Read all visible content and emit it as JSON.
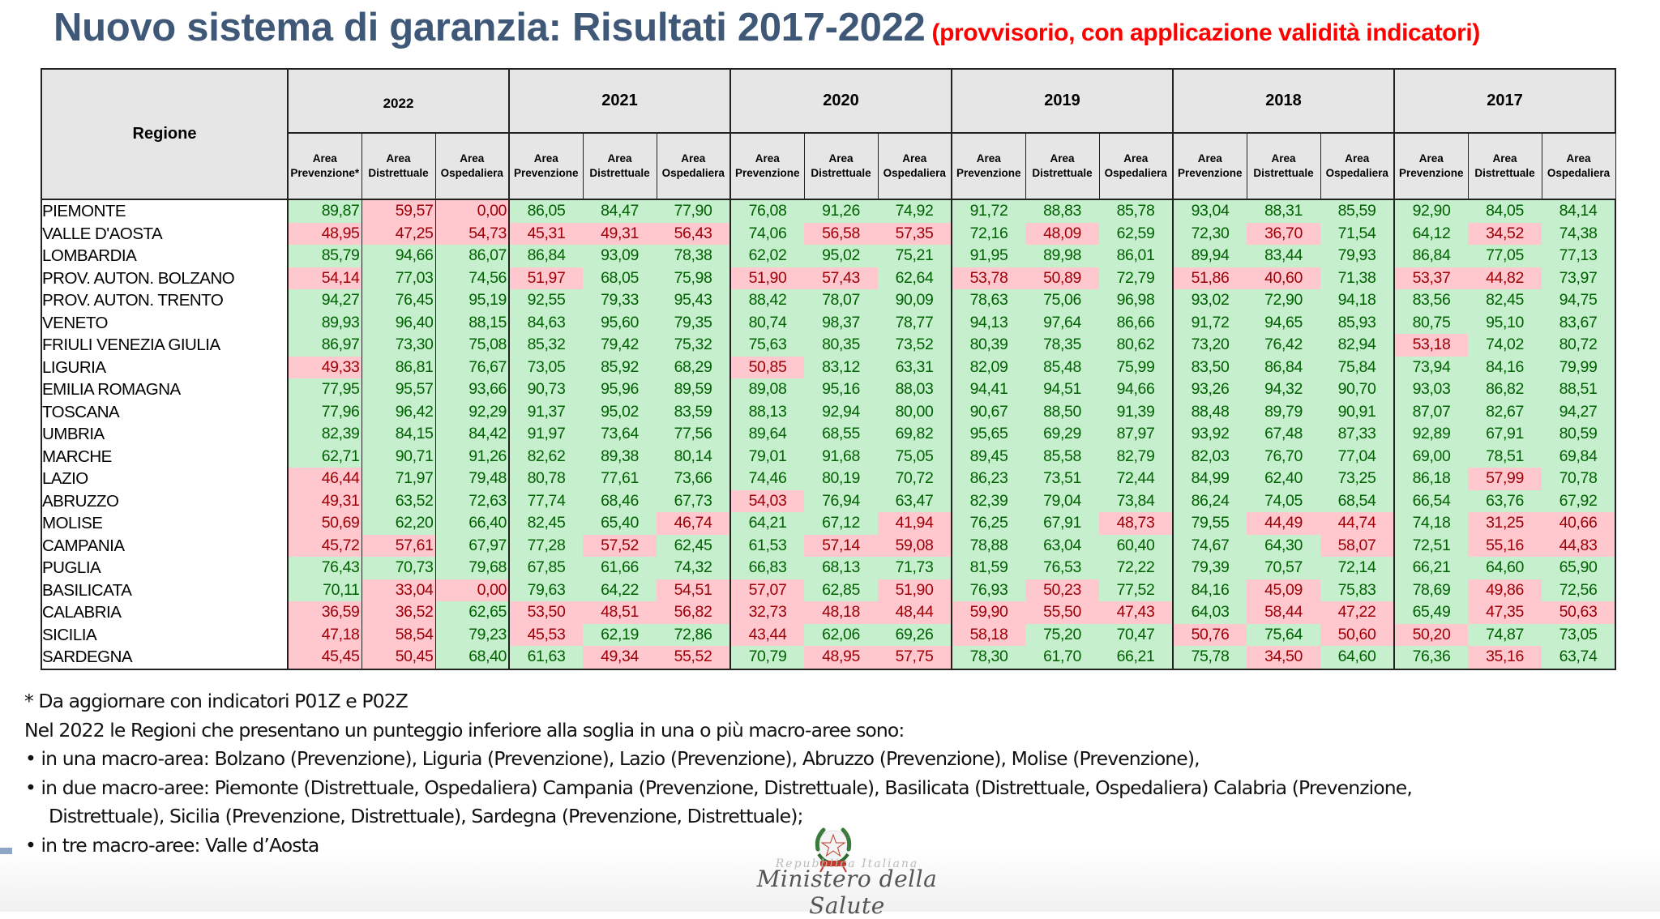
{
  "title": {
    "main": "Nuovo sistema di garanzia: Risultati 2017-2022",
    "subtitle": "(provvisorio, con applicazione validità indicatori)"
  },
  "colors": {
    "title": "#3f5878",
    "subtitle": "#ff0000",
    "above_threshold_bg": "#c6efce",
    "above_threshold_text": "#006100",
    "below_threshold_bg": "#ffc7ce",
    "below_threshold_text": "#9c0006",
    "header_bg": "#e6e6e6"
  },
  "table": {
    "region_header": "Regione",
    "years": [
      {
        "year": "2022",
        "areas": [
          "Area Prevenzione*",
          "Area Distrettuale",
          "Area Ospedaliera"
        ]
      },
      {
        "year": "2021",
        "areas": [
          "Area Prevenzione",
          "Area Distrettuale",
          "Area Ospedaliera"
        ]
      },
      {
        "year": "2020",
        "areas": [
          "Area Prevenzione",
          "Area Distrettuale",
          "Area Ospedaliera"
        ]
      },
      {
        "year": "2019",
        "areas": [
          "Area Prevenzione",
          "Area Distrettuale",
          "Area Ospedaliera"
        ]
      },
      {
        "year": "2018",
        "areas": [
          "Area Prevenzione",
          "Area Distrettuale",
          "Area Ospedaliera"
        ]
      },
      {
        "year": "2017",
        "areas": [
          "Area Prevenzione",
          "Area Distrettuale",
          "Area Ospedaliera"
        ]
      }
    ],
    "threshold": 60,
    "rows": [
      {
        "region": "PIEMONTE",
        "values": [
          "89,87",
          "59,57",
          "0,00",
          "86,05",
          "84,47",
          "77,90",
          "76,08",
          "91,26",
          "74,92",
          "91,72",
          "88,83",
          "85,78",
          "93,04",
          "88,31",
          "85,59",
          "92,90",
          "84,05",
          "84,14"
        ]
      },
      {
        "region": "VALLE D'AOSTA",
        "values": [
          "48,95",
          "47,25",
          "54,73",
          "45,31",
          "49,31",
          "56,43",
          "74,06",
          "56,58",
          "57,35",
          "72,16",
          "48,09",
          "62,59",
          "72,30",
          "36,70",
          "71,54",
          "64,12",
          "34,52",
          "74,38"
        ]
      },
      {
        "region": "LOMBARDIA",
        "values": [
          "85,79",
          "94,66",
          "86,07",
          "86,84",
          "93,09",
          "78,38",
          "62,02",
          "95,02",
          "75,21",
          "91,95",
          "89,98",
          "86,01",
          "89,94",
          "83,44",
          "79,93",
          "86,84",
          "77,05",
          "77,13"
        ]
      },
      {
        "region": "PROV. AUTON. BOLZANO",
        "values": [
          "54,14",
          "77,03",
          "74,56",
          "51,97",
          "68,05",
          "75,98",
          "51,90",
          "57,43",
          "62,64",
          "53,78",
          "50,89",
          "72,79",
          "51,86",
          "40,60",
          "71,38",
          "53,37",
          "44,82",
          "73,97"
        ]
      },
      {
        "region": "PROV. AUTON. TRENTO",
        "values": [
          "94,27",
          "76,45",
          "95,19",
          "92,55",
          "79,33",
          "95,43",
          "88,42",
          "78,07",
          "90,09",
          "78,63",
          "75,06",
          "96,98",
          "93,02",
          "72,90",
          "94,18",
          "83,56",
          "82,45",
          "94,75"
        ]
      },
      {
        "region": "VENETO",
        "values": [
          "89,93",
          "96,40",
          "88,15",
          "84,63",
          "95,60",
          "79,35",
          "80,74",
          "98,37",
          "78,77",
          "94,13",
          "97,64",
          "86,66",
          "91,72",
          "94,65",
          "85,93",
          "80,75",
          "95,10",
          "83,67"
        ]
      },
      {
        "region": "FRIULI VENEZIA GIULIA",
        "values": [
          "86,97",
          "73,30",
          "75,08",
          "85,32",
          "79,42",
          "75,32",
          "75,63",
          "80,35",
          "73,52",
          "80,39",
          "78,35",
          "80,62",
          "73,20",
          "76,42",
          "82,94",
          "53,18",
          "74,02",
          "80,72"
        ]
      },
      {
        "region": "LIGURIA",
        "values": [
          "49,33",
          "86,81",
          "76,67",
          "73,05",
          "85,92",
          "68,29",
          "50,85",
          "83,12",
          "63,31",
          "82,09",
          "85,48",
          "75,99",
          "83,50",
          "86,84",
          "75,84",
          "73,94",
          "84,16",
          "79,99"
        ]
      },
      {
        "region": "EMILIA ROMAGNA",
        "values": [
          "77,95",
          "95,57",
          "93,66",
          "90,73",
          "95,96",
          "89,59",
          "89,08",
          "95,16",
          "88,03",
          "94,41",
          "94,51",
          "94,66",
          "93,26",
          "94,32",
          "90,70",
          "93,03",
          "86,82",
          "88,51"
        ]
      },
      {
        "region": "TOSCANA",
        "values": [
          "77,96",
          "96,42",
          "92,29",
          "91,37",
          "95,02",
          "83,59",
          "88,13",
          "92,94",
          "80,00",
          "90,67",
          "88,50",
          "91,39",
          "88,48",
          "89,79",
          "90,91",
          "87,07",
          "82,67",
          "94,27"
        ]
      },
      {
        "region": "UMBRIA",
        "values": [
          "82,39",
          "84,15",
          "84,42",
          "91,97",
          "73,64",
          "77,56",
          "89,64",
          "68,55",
          "69,82",
          "95,65",
          "69,29",
          "87,97",
          "93,92",
          "67,48",
          "87,33",
          "92,89",
          "67,91",
          "80,59"
        ]
      },
      {
        "region": "MARCHE",
        "values": [
          "62,71",
          "90,71",
          "91,26",
          "82,62",
          "89,38",
          "80,14",
          "79,01",
          "91,68",
          "75,05",
          "89,45",
          "85,58",
          "82,79",
          "82,03",
          "76,70",
          "77,04",
          "69,00",
          "78,51",
          "69,84"
        ]
      },
      {
        "region": "LAZIO",
        "values": [
          "46,44",
          "71,97",
          "79,48",
          "80,78",
          "77,61",
          "73,66",
          "74,46",
          "80,19",
          "70,72",
          "86,23",
          "73,51",
          "72,44",
          "84,99",
          "62,40",
          "73,25",
          "86,18",
          "57,99",
          "70,78"
        ]
      },
      {
        "region": "ABRUZZO",
        "values": [
          "49,31",
          "63,52",
          "72,63",
          "77,74",
          "68,46",
          "67,73",
          "54,03",
          "76,94",
          "63,47",
          "82,39",
          "79,04",
          "73,84",
          "86,24",
          "74,05",
          "68,54",
          "66,54",
          "63,76",
          "67,92"
        ]
      },
      {
        "region": "MOLISE",
        "values": [
          "50,69",
          "62,20",
          "66,40",
          "82,45",
          "65,40",
          "46,74",
          "64,21",
          "67,12",
          "41,94",
          "76,25",
          "67,91",
          "48,73",
          "79,55",
          "44,49",
          "44,74",
          "74,18",
          "31,25",
          "40,66"
        ]
      },
      {
        "region": "CAMPANIA",
        "values": [
          "45,72",
          "57,61",
          "67,97",
          "77,28",
          "57,52",
          "62,45",
          "61,53",
          "57,14",
          "59,08",
          "78,88",
          "63,04",
          "60,40",
          "74,67",
          "64,30",
          "58,07",
          "72,51",
          "55,16",
          "44,83"
        ]
      },
      {
        "region": "PUGLIA",
        "values": [
          "76,43",
          "70,73",
          "79,68",
          "67,85",
          "61,66",
          "74,32",
          "66,83",
          "68,13",
          "71,73",
          "81,59",
          "76,53",
          "72,22",
          "79,39",
          "70,57",
          "72,14",
          "66,21",
          "64,60",
          "65,90"
        ]
      },
      {
        "region": "BASILICATA",
        "values": [
          "70,11",
          "33,04",
          "0,00",
          "79,63",
          "64,22",
          "54,51",
          "57,07",
          "62,85",
          "51,90",
          "76,93",
          "50,23",
          "77,52",
          "84,16",
          "45,09",
          "75,83",
          "78,69",
          "49,86",
          "72,56"
        ]
      },
      {
        "region": "CALABRIA",
        "values": [
          "36,59",
          "36,52",
          "62,65",
          "53,50",
          "48,51",
          "56,82",
          "32,73",
          "48,18",
          "48,44",
          "59,90",
          "55,50",
          "47,43",
          "64,03",
          "58,44",
          "47,22",
          "65,49",
          "47,35",
          "50,63"
        ]
      },
      {
        "region": "SICILIA",
        "values": [
          "47,18",
          "58,54",
          "79,23",
          "45,53",
          "62,19",
          "72,86",
          "43,44",
          "62,06",
          "69,26",
          "58,18",
          "75,20",
          "70,47",
          "50,76",
          "75,64",
          "50,60",
          "50,20",
          "74,87",
          "73,05"
        ]
      },
      {
        "region": "SARDEGNA",
        "values": [
          "45,45",
          "50,45",
          "68,40",
          "61,63",
          "49,34",
          "55,52",
          "70,79",
          "48,95",
          "57,75",
          "78,30",
          "61,70",
          "66,21",
          "75,78",
          "34,50",
          "64,60",
          "76,36",
          "35,16",
          "63,74"
        ]
      }
    ]
  },
  "notes": {
    "footnote": "* Da aggiornare con indicatori P01Z e P02Z",
    "intro": "Nel 2022 le Regioni che presentano un punteggio inferiore alla soglia in una o più macro-aree sono:",
    "bullets": [
      {
        "bullet": "•",
        "text": "in una macro-area: Bolzano (Prevenzione), Liguria (Prevenzione), Lazio (Prevenzione), Abruzzo (Prevenzione), Molise (Prevenzione),"
      },
      {
        "bullet": "•",
        "text": "in due macro-aree: Piemonte (Distrettuale, Ospedaliera) Campania (Prevenzione, Distrettuale), Basilicata (Distrettuale, Ospedaliera) Calabria (Prevenzione,",
        "continuation": "Distrettuale), Sicilia (Prevenzione, Distrettuale), Sardegna (Prevenzione, Distrettuale);"
      },
      {
        "bullet": "•",
        "text": "in tre macro-aree: Valle d’Aosta"
      }
    ]
  },
  "logo": {
    "faint_text": "Repubblica Italiana",
    "ministry": "Ministero della Salute",
    "icon": "italian-republic-emblem"
  }
}
